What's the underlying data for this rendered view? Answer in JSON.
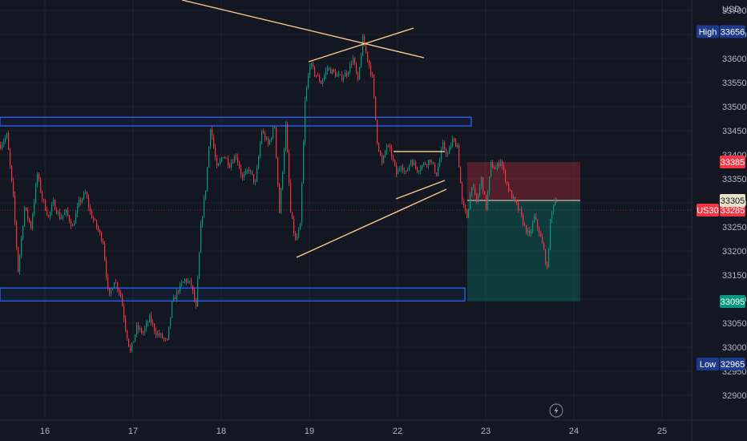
{
  "chart_data": {
    "type": "candlestick",
    "currency": "USD",
    "symbol": "US30",
    "y_ticks": [
      32900,
      32950,
      33000,
      33050,
      33100,
      33150,
      33200,
      33250,
      33300,
      33350,
      33400,
      33450,
      33500,
      33550,
      33600,
      33650,
      33700
    ],
    "x_ticks": [
      "16",
      "17",
      "18",
      "19",
      "22",
      "23",
      "24",
      "25"
    ],
    "ylim": [
      32875,
      33730
    ],
    "price_labels": {
      "high": {
        "label": "High",
        "value": "33656"
      },
      "low": {
        "label": "Low",
        "value": "32965"
      },
      "last": {
        "label": "US30",
        "value": "33285"
      },
      "stop_loss": {
        "value": "33385"
      },
      "entry": {
        "value": "33305"
      },
      "take_profit": {
        "value": "33095"
      }
    },
    "zones": [
      {
        "name": "resistance-zone",
        "price_top": 33478,
        "price_bottom": 33460
      },
      {
        "name": "support-zone",
        "price_top": 33123,
        "price_bottom": 33096
      }
    ],
    "short_position": {
      "entry": 33305,
      "stop_loss": 33385,
      "take_profit": 33095
    },
    "price_path": [
      [
        0,
        33420
      ],
      [
        8,
        33440
      ],
      [
        16,
        33310
      ],
      [
        22,
        33160
      ],
      [
        30,
        33290
      ],
      [
        38,
        33250
      ],
      [
        46,
        33360
      ],
      [
        52,
        33310
      ],
      [
        60,
        33270
      ],
      [
        66,
        33300
      ],
      [
        74,
        33270
      ],
      [
        82,
        33280
      ],
      [
        90,
        33250
      ],
      [
        98,
        33300
      ],
      [
        106,
        33320
      ],
      [
        112,
        33280
      ],
      [
        120,
        33250
      ],
      [
        128,
        33220
      ],
      [
        135,
        33100
      ],
      [
        142,
        33140
      ],
      [
        150,
        33110
      ],
      [
        156,
        33040
      ],
      [
        162,
        32990
      ],
      [
        170,
        33040
      ],
      [
        178,
        33030
      ],
      [
        186,
        33060
      ],
      [
        194,
        33030
      ],
      [
        202,
        33020
      ],
      [
        208,
        33010
      ],
      [
        214,
        33090
      ],
      [
        222,
        33120
      ],
      [
        230,
        33140
      ],
      [
        238,
        33130
      ],
      [
        244,
        33080
      ],
      [
        250,
        33250
      ],
      [
        256,
        33330
      ],
      [
        262,
        33460
      ],
      [
        270,
        33370
      ],
      [
        278,
        33400
      ],
      [
        286,
        33380
      ],
      [
        294,
        33400
      ],
      [
        302,
        33350
      ],
      [
        310,
        33370
      ],
      [
        318,
        33340
      ],
      [
        326,
        33450
      ],
      [
        334,
        33420
      ],
      [
        342,
        33460
      ],
      [
        348,
        33280
      ],
      [
        356,
        33460
      ],
      [
        362,
        33280
      ],
      [
        368,
        33220
      ],
      [
        374,
        33250
      ],
      [
        380,
        33510
      ],
      [
        386,
        33590
      ],
      [
        392,
        33570
      ],
      [
        400,
        33550
      ],
      [
        408,
        33580
      ],
      [
        416,
        33570
      ],
      [
        424,
        33560
      ],
      [
        432,
        33570
      ],
      [
        440,
        33600
      ],
      [
        446,
        33550
      ],
      [
        452,
        33640
      ],
      [
        458,
        33600
      ],
      [
        464,
        33560
      ],
      [
        470,
        33430
      ],
      [
        476,
        33380
      ],
      [
        482,
        33420
      ],
      [
        488,
        33400
      ],
      [
        494,
        33360
      ],
      [
        500,
        33380
      ],
      [
        506,
        33360
      ],
      [
        512,
        33390
      ],
      [
        520,
        33370
      ],
      [
        528,
        33380
      ],
      [
        536,
        33390
      ],
      [
        544,
        33360
      ],
      [
        552,
        33420
      ],
      [
        558,
        33400
      ],
      [
        564,
        33430
      ],
      [
        570,
        33420
      ],
      [
        576,
        33300
      ],
      [
        582,
        33270
      ],
      [
        588,
        33340
      ],
      [
        594,
        33300
      ],
      [
        600,
        33350
      ],
      [
        606,
        33290
      ],
      [
        612,
        33380
      ],
      [
        618,
        33370
      ],
      [
        624,
        33390
      ],
      [
        630,
        33350
      ],
      [
        636,
        33320
      ],
      [
        642,
        33300
      ],
      [
        648,
        33280
      ],
      [
        654,
        33250
      ],
      [
        660,
        33230
      ],
      [
        666,
        33270
      ],
      [
        672,
        33240
      ],
      [
        678,
        33200
      ],
      [
        682,
        33160
      ],
      [
        686,
        33260
      ],
      [
        690,
        33300
      ],
      [
        694,
        33310
      ]
    ]
  }
}
